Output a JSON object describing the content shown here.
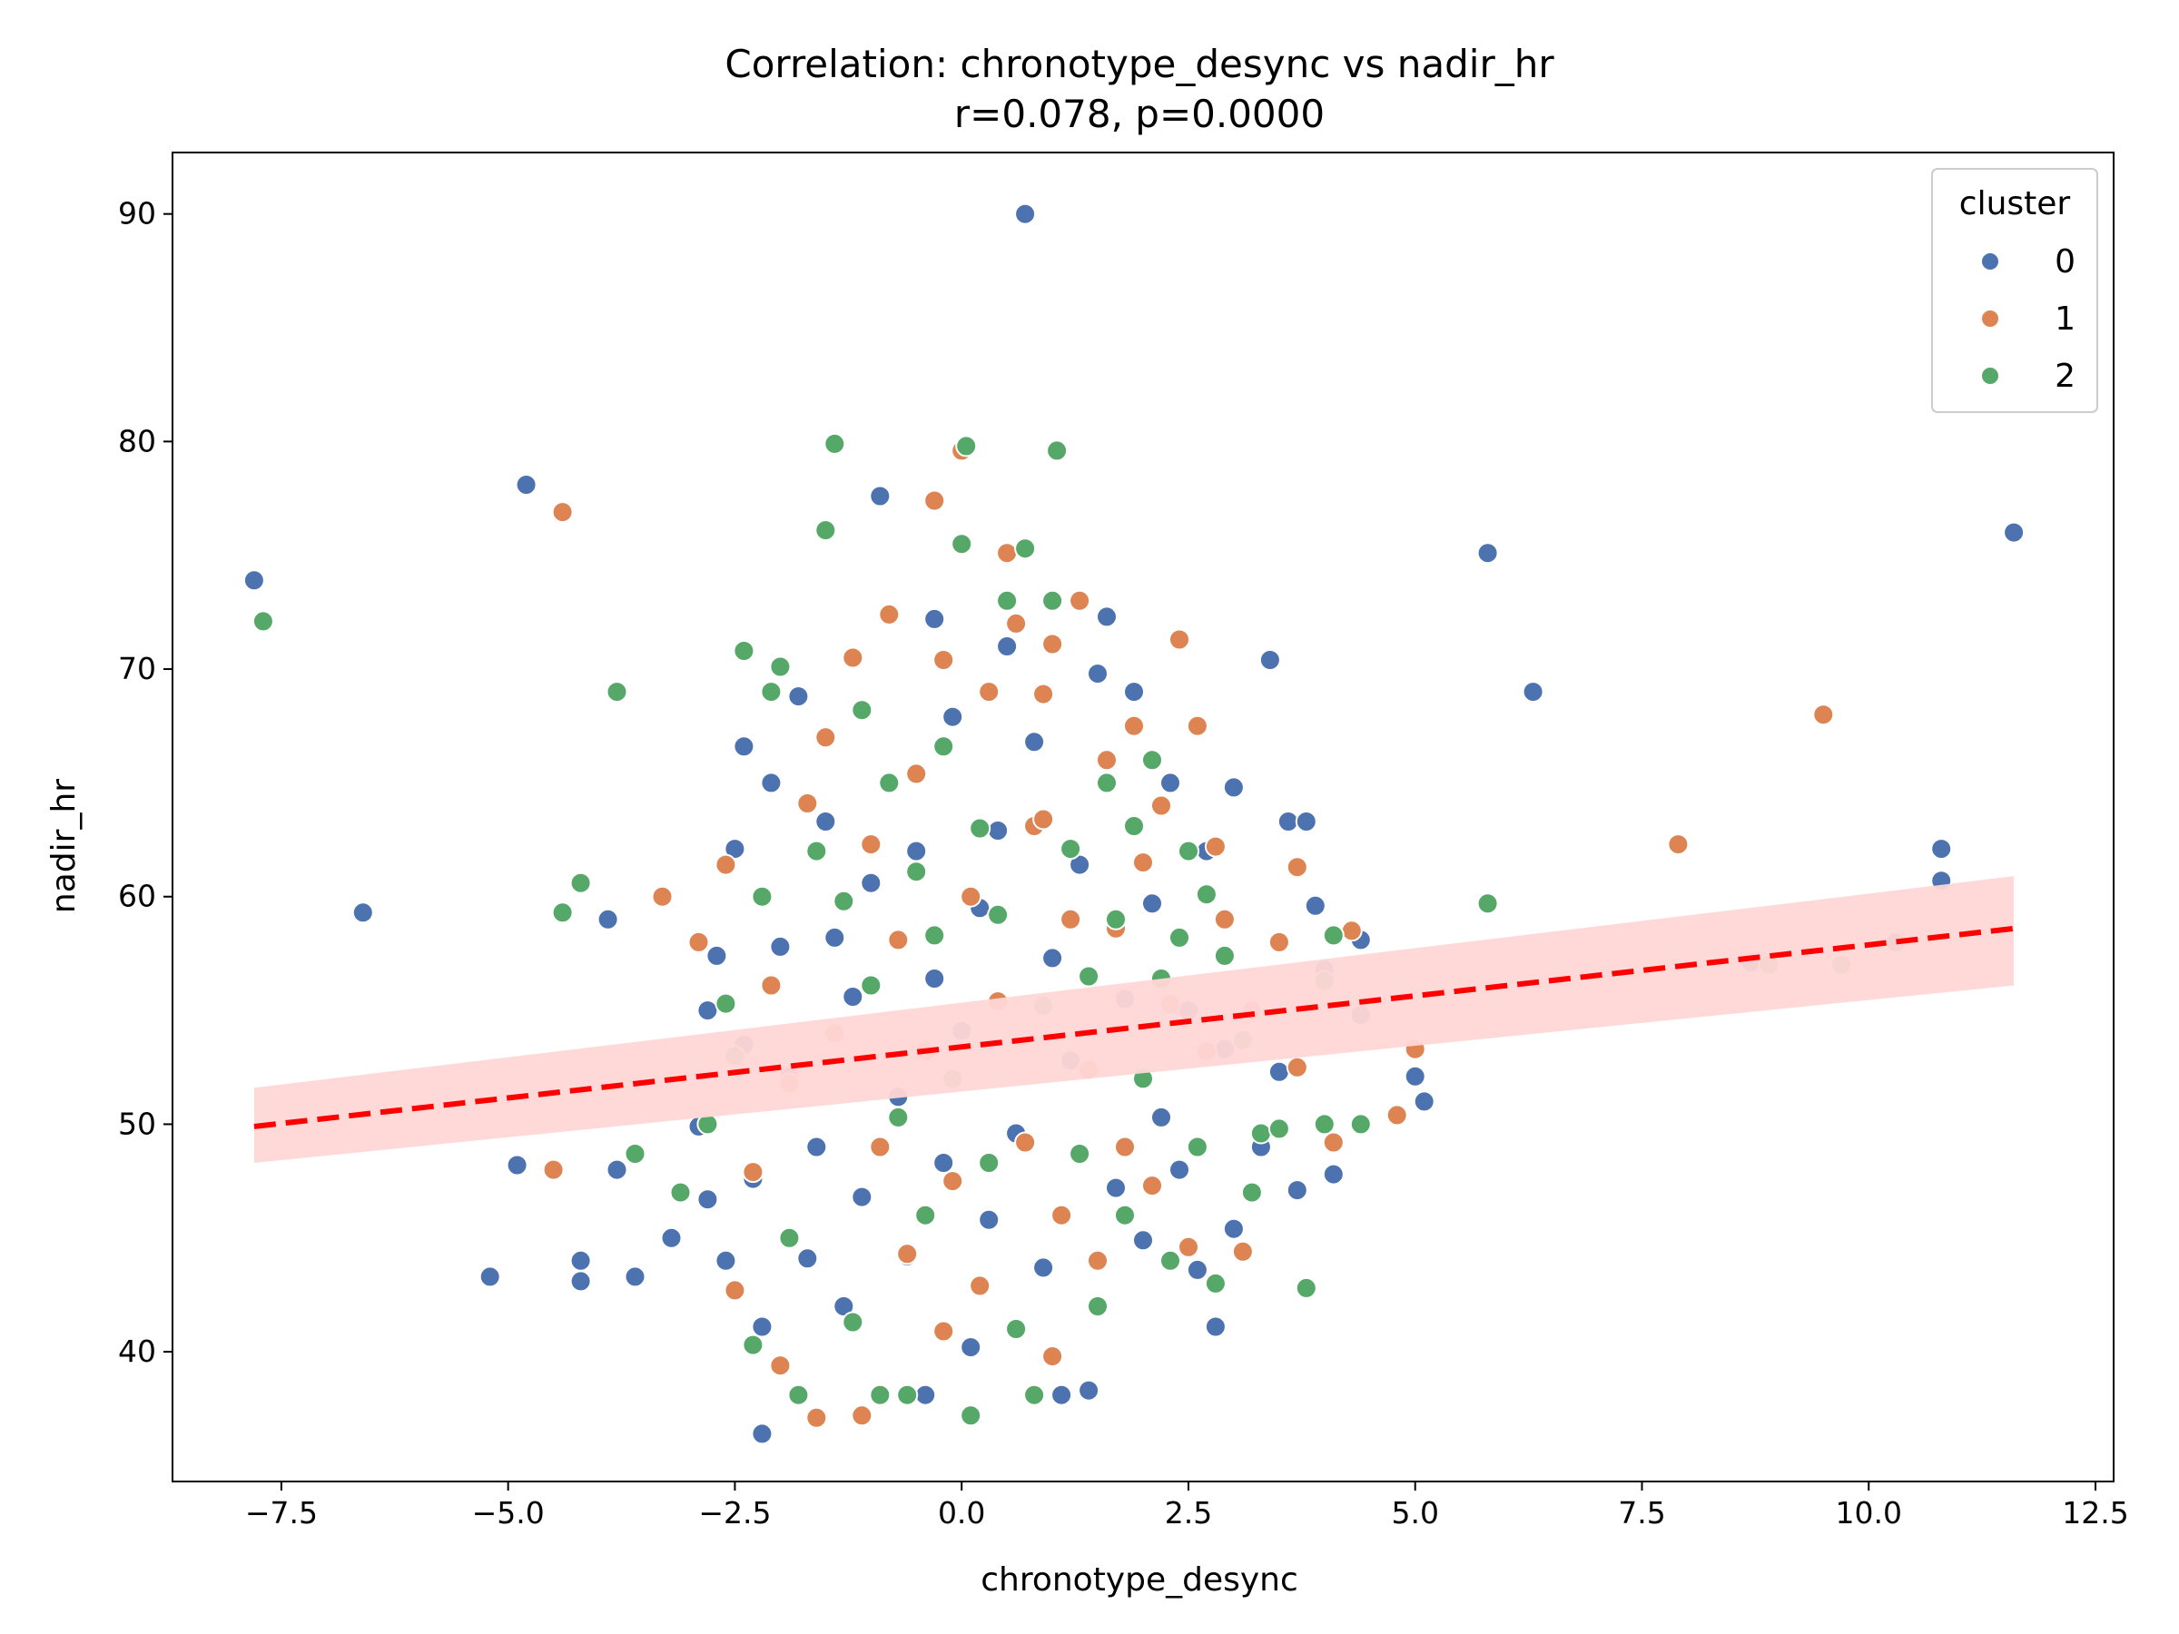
{
  "chart_data": {
    "type": "scatter",
    "title": "Correlation: chronotype_desync vs nadir_hr",
    "subtitle": "r=0.078, p=0.0000",
    "xlabel": "chronotype_desync",
    "ylabel": "nadir_hr",
    "xlim": [
      -8.7,
      12.7
    ],
    "ylim": [
      34.3,
      92.7
    ],
    "x_ticks": [
      -7.5,
      -5.0,
      -2.5,
      0.0,
      2.5,
      5.0,
      7.5,
      10.0,
      12.5
    ],
    "x_tick_labels": [
      "−7.5",
      "−5.0",
      "−2.5",
      "0.0",
      "2.5",
      "5.0",
      "7.5",
      "10.0",
      "12.5"
    ],
    "y_ticks": [
      40,
      50,
      60,
      70,
      80,
      90
    ],
    "y_tick_labels": [
      "40",
      "50",
      "60",
      "70",
      "80",
      "90"
    ],
    "grid": false,
    "legend": {
      "title": "cluster",
      "position": "top-right"
    },
    "series": [
      {
        "name": "0",
        "color": "#4c72b0",
        "points": [
          [
            -7.8,
            73.9
          ],
          [
            -6.6,
            59.3
          ],
          [
            -4.8,
            78.1
          ],
          [
            -4.9,
            48.2
          ],
          [
            -5.2,
            43.3
          ],
          [
            -4.2,
            44.0
          ],
          [
            -4.2,
            43.1
          ],
          [
            -3.9,
            59.0
          ],
          [
            -3.8,
            48.0
          ],
          [
            -3.6,
            43.3
          ],
          [
            -3.2,
            45.0
          ],
          [
            -2.9,
            49.9
          ],
          [
            -2.8,
            46.7
          ],
          [
            -2.8,
            55.0
          ],
          [
            -2.7,
            57.4
          ],
          [
            -2.6,
            44.0
          ],
          [
            -2.5,
            62.1
          ],
          [
            -2.4,
            66.6
          ],
          [
            -2.4,
            53.5
          ],
          [
            -2.3,
            47.6
          ],
          [
            -2.2,
            36.4
          ],
          [
            -2.2,
            41.1
          ],
          [
            -2.1,
            65.0
          ],
          [
            -2.0,
            57.8
          ],
          [
            -1.9,
            52.1
          ],
          [
            -1.8,
            68.8
          ],
          [
            -1.7,
            44.1
          ],
          [
            -1.6,
            49.0
          ],
          [
            -1.5,
            63.3
          ],
          [
            -1.4,
            58.2
          ],
          [
            -1.3,
            42.0
          ],
          [
            -1.2,
            55.6
          ],
          [
            -1.1,
            46.8
          ],
          [
            -1.0,
            60.6
          ],
          [
            -0.9,
            77.6
          ],
          [
            -0.8,
            72.4
          ],
          [
            -0.7,
            51.2
          ],
          [
            -0.6,
            44.2
          ],
          [
            -0.5,
            62.0
          ],
          [
            -0.4,
            38.1
          ],
          [
            -0.3,
            56.4
          ],
          [
            -0.3,
            72.2
          ],
          [
            -0.2,
            48.3
          ],
          [
            -0.1,
            67.9
          ],
          [
            0.0,
            54.1
          ],
          [
            0.1,
            40.2
          ],
          [
            0.2,
            59.5
          ],
          [
            0.3,
            45.8
          ],
          [
            0.4,
            62.9
          ],
          [
            0.5,
            71.0
          ],
          [
            0.6,
            49.6
          ],
          [
            0.7,
            90.0
          ],
          [
            0.8,
            66.8
          ],
          [
            0.9,
            43.7
          ],
          [
            1.0,
            57.3
          ],
          [
            1.1,
            38.1
          ],
          [
            1.2,
            52.8
          ],
          [
            1.3,
            61.4
          ],
          [
            1.4,
            38.3
          ],
          [
            1.5,
            69.8
          ],
          [
            1.6,
            72.3
          ],
          [
            1.7,
            47.2
          ],
          [
            1.8,
            55.5
          ],
          [
            1.9,
            69.0
          ],
          [
            2.0,
            44.9
          ],
          [
            2.1,
            59.7
          ],
          [
            2.2,
            50.3
          ],
          [
            2.3,
            65.0
          ],
          [
            2.4,
            48.0
          ],
          [
            2.5,
            55.0
          ],
          [
            2.6,
            43.6
          ],
          [
            2.7,
            62.0
          ],
          [
            2.8,
            41.1
          ],
          [
            2.9,
            53.3
          ],
          [
            3.0,
            45.4
          ],
          [
            3.0,
            64.8
          ],
          [
            3.3,
            49.0
          ],
          [
            3.4,
            70.4
          ],
          [
            3.5,
            52.3
          ],
          [
            3.6,
            63.3
          ],
          [
            3.7,
            47.1
          ],
          [
            3.8,
            63.3
          ],
          [
            3.9,
            59.6
          ],
          [
            4.0,
            56.8
          ],
          [
            4.1,
            47.8
          ],
          [
            4.4,
            54.8
          ],
          [
            4.4,
            58.1
          ],
          [
            5.0,
            52.1
          ],
          [
            5.1,
            51.0
          ],
          [
            5.8,
            75.1
          ],
          [
            6.3,
            69.0
          ],
          [
            8.7,
            57.1
          ],
          [
            10.3,
            58.0
          ],
          [
            10.8,
            62.1
          ],
          [
            10.8,
            60.7
          ],
          [
            11.6,
            76.0
          ]
        ]
      },
      {
        "name": "1",
        "color": "#dd8452",
        "points": [
          [
            -4.4,
            76.9
          ],
          [
            -4.5,
            48.0
          ],
          [
            -3.3,
            60.0
          ],
          [
            -2.9,
            58.0
          ],
          [
            -2.6,
            61.4
          ],
          [
            -2.5,
            42.7
          ],
          [
            -2.3,
            47.9
          ],
          [
            -2.1,
            56.1
          ],
          [
            -2.0,
            39.4
          ],
          [
            -1.9,
            51.8
          ],
          [
            -1.7,
            64.1
          ],
          [
            -1.6,
            37.1
          ],
          [
            -1.5,
            67.0
          ],
          [
            -1.4,
            54.0
          ],
          [
            -1.2,
            70.5
          ],
          [
            -1.1,
            37.2
          ],
          [
            -1.0,
            62.3
          ],
          [
            -0.9,
            49.0
          ],
          [
            -0.8,
            72.4
          ],
          [
            -0.7,
            58.1
          ],
          [
            -0.6,
            44.3
          ],
          [
            -0.5,
            65.4
          ],
          [
            -0.4,
            53.2
          ],
          [
            -0.3,
            77.4
          ],
          [
            -0.2,
            70.4
          ],
          [
            -0.1,
            47.5
          ],
          [
            0.0,
            79.6
          ],
          [
            0.1,
            60.0
          ],
          [
            0.2,
            42.9
          ],
          [
            0.3,
            69.0
          ],
          [
            0.4,
            55.4
          ],
          [
            0.5,
            75.1
          ],
          [
            0.6,
            72.0
          ],
          [
            0.7,
            49.2
          ],
          [
            0.8,
            63.1
          ],
          [
            0.9,
            68.9
          ],
          [
            1.0,
            71.1
          ],
          [
            1.1,
            46.0
          ],
          [
            1.2,
            59.0
          ],
          [
            1.3,
            73.0
          ],
          [
            1.4,
            52.4
          ],
          [
            1.6,
            66.0
          ],
          [
            1.7,
            58.6
          ],
          [
            1.8,
            49.0
          ],
          [
            1.9,
            67.5
          ],
          [
            2.0,
            61.5
          ],
          [
            2.1,
            47.3
          ],
          [
            2.2,
            64.0
          ],
          [
            2.3,
            55.3
          ],
          [
            2.4,
            71.3
          ],
          [
            2.5,
            44.6
          ],
          [
            2.6,
            67.5
          ],
          [
            2.7,
            53.2
          ],
          [
            2.8,
            62.2
          ],
          [
            2.9,
            59.0
          ],
          [
            3.1,
            44.4
          ],
          [
            3.2,
            55.0
          ],
          [
            3.5,
            58.0
          ],
          [
            3.7,
            61.3
          ],
          [
            3.7,
            52.5
          ],
          [
            4.1,
            49.2
          ],
          [
            4.3,
            58.5
          ],
          [
            4.8,
            50.4
          ],
          [
            5.0,
            53.3
          ],
          [
            7.9,
            62.3
          ],
          [
            9.5,
            68.0
          ],
          [
            1.0,
            39.8
          ],
          [
            -0.2,
            40.9
          ],
          [
            0.9,
            63.4
          ],
          [
            1.5,
            44.0
          ]
        ]
      },
      {
        "name": "2",
        "color": "#55a868",
        "points": [
          [
            -7.7,
            72.1
          ],
          [
            -4.4,
            59.3
          ],
          [
            -4.2,
            60.6
          ],
          [
            -3.8,
            69.0
          ],
          [
            -3.6,
            48.7
          ],
          [
            -3.1,
            47.0
          ],
          [
            -2.8,
            50.0
          ],
          [
            -2.6,
            55.3
          ],
          [
            -2.5,
            53.0
          ],
          [
            -2.4,
            70.8
          ],
          [
            -2.3,
            40.3
          ],
          [
            -2.2,
            60.0
          ],
          [
            -2.1,
            69.0
          ],
          [
            -2.0,
            70.1
          ],
          [
            -1.9,
            45.0
          ],
          [
            -1.8,
            38.1
          ],
          [
            -1.6,
            62.0
          ],
          [
            -1.5,
            76.1
          ],
          [
            -1.4,
            79.9
          ],
          [
            -1.3,
            59.8
          ],
          [
            -1.2,
            41.3
          ],
          [
            -1.1,
            68.2
          ],
          [
            -1.0,
            56.1
          ],
          [
            -0.9,
            38.1
          ],
          [
            -0.8,
            65.0
          ],
          [
            -0.7,
            50.3
          ],
          [
            -0.6,
            38.1
          ],
          [
            -0.5,
            61.1
          ],
          [
            -0.4,
            46.0
          ],
          [
            -0.3,
            58.3
          ],
          [
            -0.2,
            66.6
          ],
          [
            -0.1,
            52.0
          ],
          [
            0.0,
            75.5
          ],
          [
            0.05,
            79.8
          ],
          [
            0.1,
            37.2
          ],
          [
            0.2,
            63.0
          ],
          [
            0.3,
            48.3
          ],
          [
            0.4,
            59.2
          ],
          [
            0.5,
            73.0
          ],
          [
            0.6,
            41.0
          ],
          [
            0.7,
            75.3
          ],
          [
            0.8,
            38.1
          ],
          [
            0.9,
            55.2
          ],
          [
            1.0,
            73.0
          ],
          [
            1.05,
            79.6
          ],
          [
            1.2,
            62.1
          ],
          [
            1.3,
            48.7
          ],
          [
            1.4,
            56.5
          ],
          [
            1.5,
            42.0
          ],
          [
            1.6,
            65.0
          ],
          [
            1.7,
            59.0
          ],
          [
            1.8,
            46.0
          ],
          [
            1.9,
            63.1
          ],
          [
            2.0,
            52.0
          ],
          [
            2.1,
            66.0
          ],
          [
            2.2,
            56.4
          ],
          [
            2.3,
            44.0
          ],
          [
            2.4,
            58.2
          ],
          [
            2.5,
            62.0
          ],
          [
            2.6,
            49.0
          ],
          [
            2.7,
            60.1
          ],
          [
            2.8,
            43.0
          ],
          [
            2.9,
            57.4
          ],
          [
            3.1,
            53.7
          ],
          [
            3.2,
            47.0
          ],
          [
            3.3,
            49.6
          ],
          [
            3.5,
            49.8
          ],
          [
            3.8,
            42.8
          ],
          [
            4.0,
            50.0
          ],
          [
            4.0,
            56.3
          ],
          [
            4.1,
            58.3
          ],
          [
            4.4,
            50.0
          ],
          [
            5.8,
            59.7
          ],
          [
            8.9,
            57.0
          ],
          [
            9.7,
            57.0
          ]
        ]
      }
    ],
    "regression": {
      "x_range": [
        -7.8,
        11.6
      ],
      "y_range": [
        49.9,
        58.6
      ],
      "ci_low": [
        48.3,
        56.1
      ],
      "ci_high": [
        51.6,
        60.9
      ],
      "line_color": "#ff0000",
      "band_color": "#ffd6d6",
      "line_style": "dashed"
    }
  }
}
